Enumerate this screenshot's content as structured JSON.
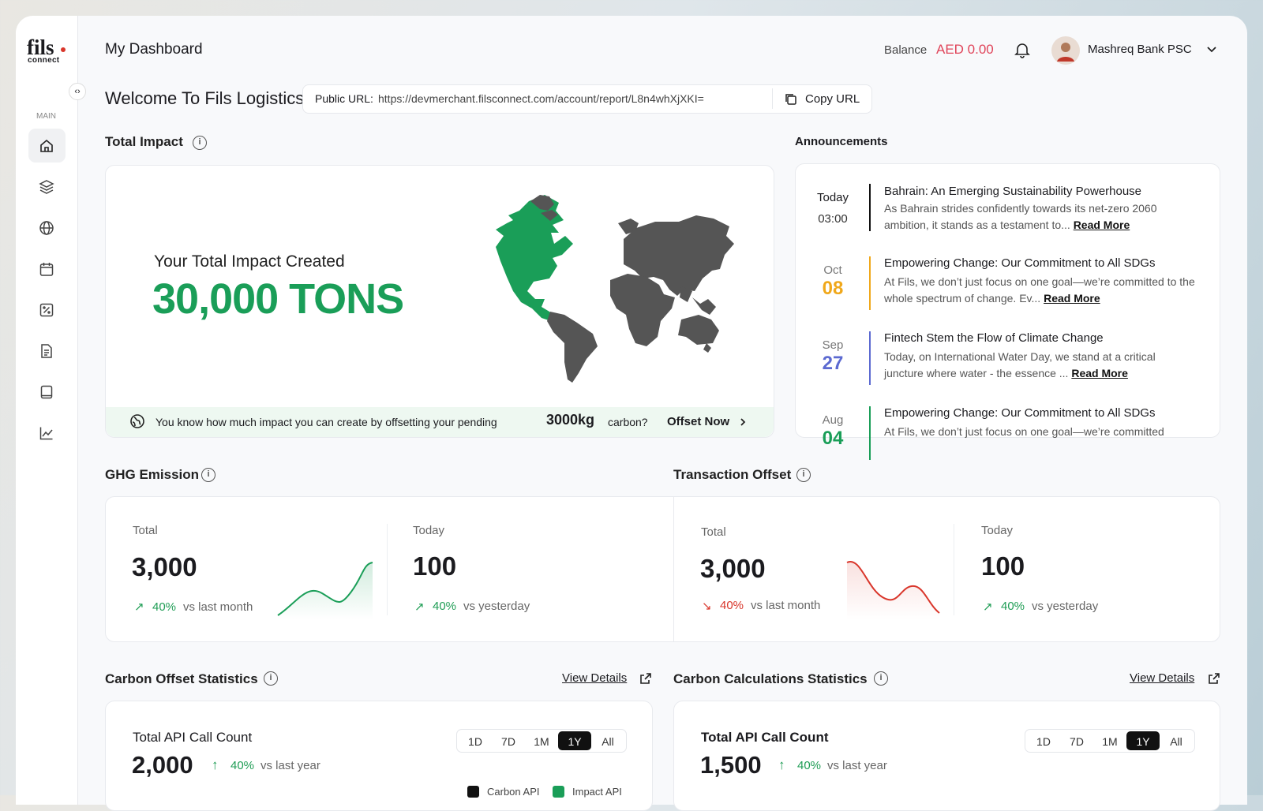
{
  "sidebar": {
    "logo": "fils",
    "logo_sub": "connect",
    "section": "MAIN"
  },
  "header": {
    "title": "My Dashboard",
    "balance_label": "Balance",
    "balance_value": "AED 0.00",
    "user_name": "Mashreq Bank PSC"
  },
  "welcome": {
    "title": "Welcome To Fils Logistics",
    "url_label": "Public URL:",
    "url": "https://devmerchant.filsconnect.com/account/report/L8n4whXjXKI=",
    "copy_button": "Copy URL"
  },
  "total_impact": {
    "title": "Total Impact",
    "caption": "Your Total Impact Created",
    "value": "30,000 TONS",
    "banner": {
      "text": "You know how much impact you can create by offsetting your pending",
      "amount": "3000kg",
      "suffix": "carbon?",
      "action": "Offset Now"
    }
  },
  "announcements": {
    "title": "Announcements",
    "items": [
      {
        "date_top": "Today",
        "date_bottom": "03:00",
        "title": "Bahrain: An Emerging Sustainability Powerhouse",
        "body": "As Bahrain strides confidently towards its net-zero 2060 ambition, it stands as a testament to...",
        "link": "Read More"
      },
      {
        "date_top": "Oct",
        "date_bottom": "08",
        "title": "Empowering Change: Our Commitment to All SDGs",
        "body": "At Fils, we don’t just focus on one goal—we’re committed to the whole spectrum of change. Ev...",
        "link": "Read More"
      },
      {
        "date_top": "Sep",
        "date_bottom": "27",
        "title": "Fintech Stem the Flow of Climate Change",
        "body": "Today, on International Water Day, we stand at a critical juncture where water - the essence ...",
        "link": "Read More"
      },
      {
        "date_top": "Aug",
        "date_bottom": "04",
        "title": "Empowering Change: Our Commitment to All SDGs",
        "body": "At Fils, we don’t just focus on one goal—we’re committed"
      }
    ]
  },
  "ghg_emission": {
    "title": "GHG Emission",
    "total": {
      "label": "Total",
      "value": "3,000",
      "change": "40%",
      "period": "vs last month"
    },
    "today": {
      "label": "Today",
      "value": "100",
      "change": "40%",
      "period": "vs yesterday"
    }
  },
  "transaction_offset": {
    "title": "Transaction Offset",
    "total": {
      "label": "Total",
      "value": "3,000",
      "change": "40%",
      "period": "vs last month"
    },
    "today": {
      "label": "Today",
      "value": "100",
      "change": "40%",
      "period": "vs yesterday"
    }
  },
  "carbon_offset_statistics": {
    "title": "Carbon Offset Statistics",
    "link": "View Details",
    "card_title": "Total API Call Count",
    "value": "2,000",
    "change": "40%",
    "period": "vs last year",
    "ranges": [
      "1D",
      "7D",
      "1M",
      "1Y",
      "All"
    ],
    "active_range": 3,
    "legend": [
      "Carbon API",
      "Impact API"
    ]
  },
  "carbon_calculations_statistics": {
    "title": "Carbon Calculations Statistics",
    "link": "View Details",
    "card_title": "Total API Call Count",
    "value": "1,500",
    "change": "40%",
    "period": "vs last year",
    "ranges": [
      "1D",
      "7D",
      "1M",
      "1Y",
      "All"
    ],
    "active_range": 3
  }
}
